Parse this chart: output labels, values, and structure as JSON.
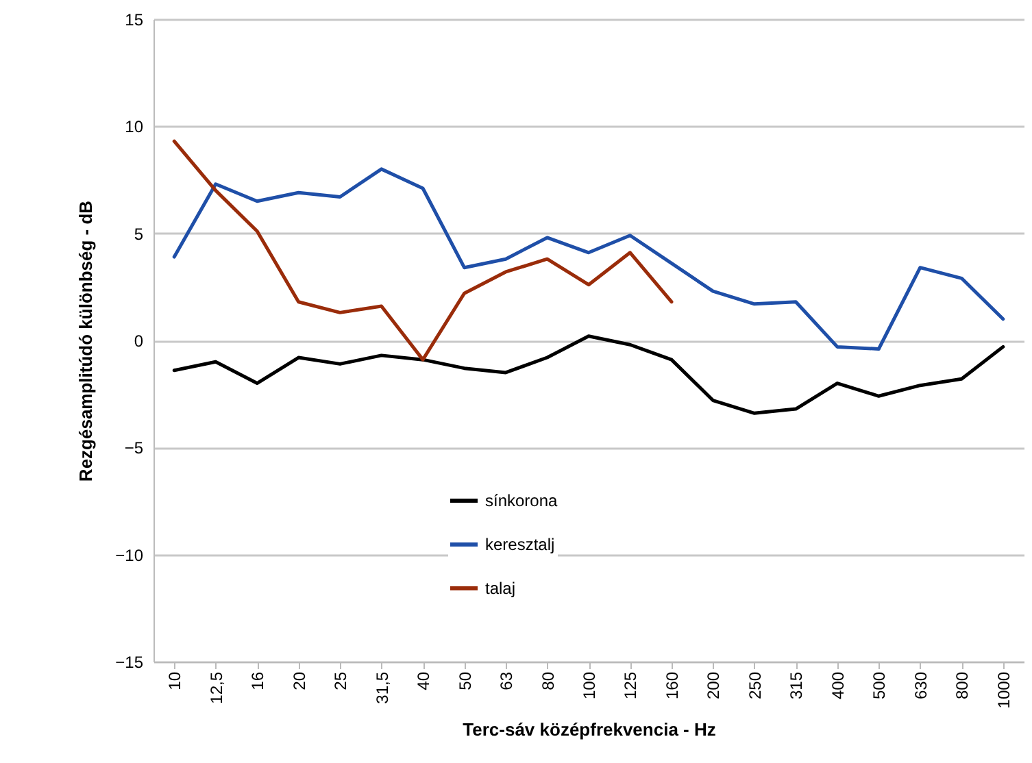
{
  "chart_data": {
    "type": "line",
    "xlabel": "Terc-sáv középfrekvencia  -  Hz",
    "ylabel": "Rezgésamplitúdó különbség  -  dB",
    "categories": [
      "10",
      "12,5",
      "16",
      "20",
      "25",
      "31,5",
      "40",
      "50",
      "63",
      "80",
      "100",
      "125",
      "160",
      "200",
      "250",
      "315",
      "400",
      "500",
      "630",
      "800",
      "1000"
    ],
    "series": [
      {
        "name": "sínkorona",
        "color": "#000000",
        "values": [
          -1.4,
          -1.0,
          -2.0,
          -0.8,
          -1.1,
          -0.7,
          -0.9,
          -1.3,
          -1.5,
          -0.8,
          0.2,
          -0.2,
          -0.9,
          -2.8,
          -3.4,
          -3.2,
          -2.0,
          -2.6,
          -2.1,
          -1.8,
          -0.3
        ]
      },
      {
        "name": "keresztalj",
        "color": "#1f4fa8",
        "values": [
          3.9,
          7.3,
          6.5,
          6.9,
          6.7,
          8.0,
          7.1,
          3.4,
          3.8,
          4.8,
          4.1,
          4.9,
          3.6,
          2.3,
          1.7,
          1.8,
          -0.3,
          -0.4,
          3.4,
          2.9,
          1.0
        ]
      },
      {
        "name": "talaj",
        "color": "#9a2c0a",
        "values": [
          9.3,
          7.0,
          5.1,
          1.8,
          1.3,
          1.6,
          -0.9,
          2.2,
          3.2,
          3.8,
          2.6,
          4.1,
          1.8,
          null,
          null,
          null,
          null,
          null,
          null,
          null,
          null
        ]
      }
    ],
    "ylim": [
      -15,
      15
    ],
    "yticks": [
      -15,
      -10,
      -5,
      0,
      5,
      10,
      15
    ],
    "grid": "y",
    "legend": "bottom",
    "line_style": "solid"
  }
}
